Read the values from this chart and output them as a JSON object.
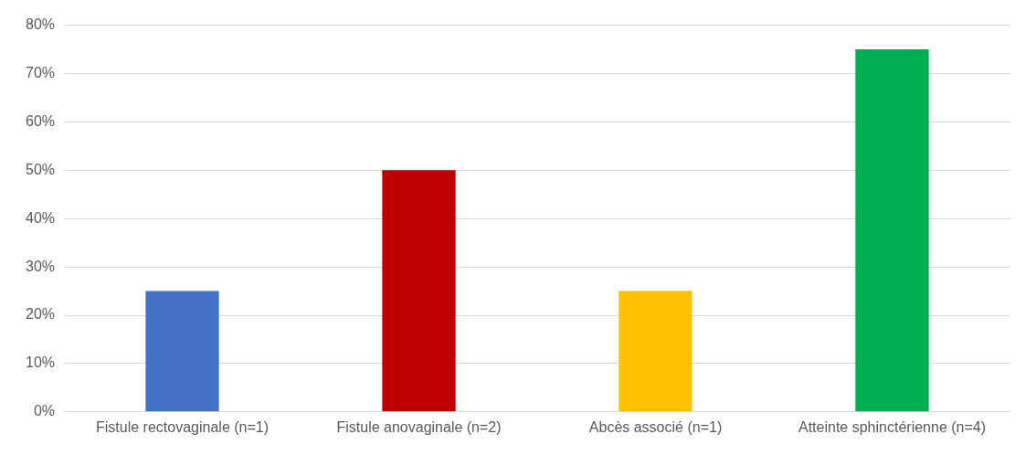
{
  "chart_data": {
    "type": "bar",
    "categories": [
      "Fistule rectovaginale (n=1)",
      "Fistule anovaginale (n=2)",
      "Abcès associé (n=1)",
      "Atteinte sphinctérienne (n=4)"
    ],
    "values": [
      25,
      50,
      25,
      75
    ],
    "colors": [
      "#4472c4",
      "#c00000",
      "#ffc000",
      "#00b050"
    ],
    "ylim": [
      0,
      80
    ],
    "yticks": [
      {
        "value": 0,
        "label": "0%"
      },
      {
        "value": 10,
        "label": "10%"
      },
      {
        "value": 20,
        "label": "20%"
      },
      {
        "value": 30,
        "label": "30%"
      },
      {
        "value": 40,
        "label": "40%"
      },
      {
        "value": 50,
        "label": "50%"
      },
      {
        "value": 60,
        "label": "60%"
      },
      {
        "value": 70,
        "label": "70%"
      },
      {
        "value": 80,
        "label": "80%"
      }
    ],
    "grid": "y",
    "legend": false
  }
}
